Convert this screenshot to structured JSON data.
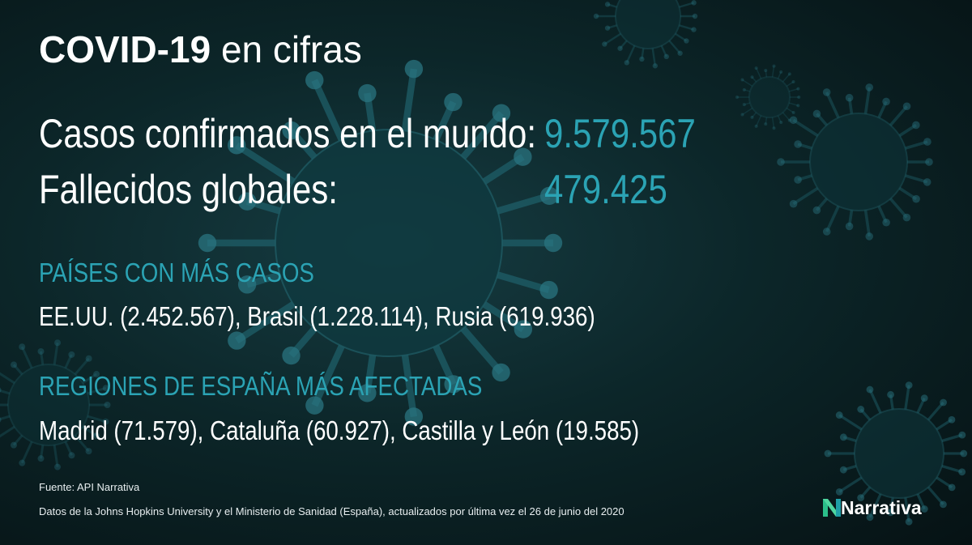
{
  "header": {
    "title_bold": "COVID-19",
    "title_rest": "en cifras"
  },
  "stats": [
    {
      "label": "Casos confirmados en el mundo:",
      "value": "9.579.567"
    },
    {
      "label": "Fallecidos globales:",
      "value": "479.425"
    }
  ],
  "sections": [
    {
      "heading": "PAÍSES CON MÁS CASOS",
      "text": "EE.UU. (2.452.567), Brasil (1.228.114), Rusia (619.936)"
    },
    {
      "heading": "REGIONES DE ESPAÑA MÁS AFECTADAS",
      "text": "Madrid (71.579), Cataluña (60.927), Castilla y León (19.585)"
    }
  ],
  "footer": {
    "source": "Fuente: API Narrativa",
    "note": "Datos de la Johns Hopkins University y el Ministerio de Sanidad (España), actualizados por última vez el 26 de junio del 2020",
    "logo": "Narrativa"
  }
}
